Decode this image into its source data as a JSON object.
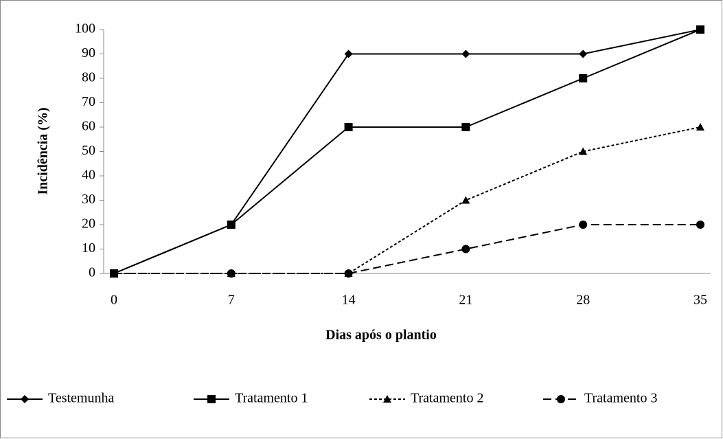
{
  "chart_data": {
    "type": "line",
    "xlabel": "Dias após o plantio",
    "ylabel": "Incidência (%)",
    "categories": [
      "0",
      "7",
      "14",
      "21",
      "28",
      "35"
    ],
    "series": [
      {
        "name": "Testemunha",
        "color": "#000000",
        "marker": "diamond",
        "dash": "solid",
        "values": [
          0,
          20,
          90,
          90,
          90,
          100
        ]
      },
      {
        "name": "Tratamento 1",
        "color": "#000000",
        "marker": "square",
        "dash": "solid",
        "values": [
          0,
          20,
          60,
          60,
          80,
          100
        ]
      },
      {
        "name": "Tratamento 2",
        "color": "#000000",
        "marker": "triangle",
        "dash": "short-dash",
        "values": [
          0,
          0,
          0,
          30,
          50,
          60
        ]
      },
      {
        "name": "Tratamento 3",
        "color": "#000000",
        "marker": "circle",
        "dash": "long-dash",
        "values": [
          0,
          0,
          0,
          10,
          20,
          20
        ]
      }
    ],
    "ylim": [
      0,
      100
    ],
    "yticks": [
      0,
      10,
      20,
      30,
      40,
      50,
      60,
      70,
      80,
      90,
      100
    ],
    "grid": false,
    "legend": "bottom"
  }
}
